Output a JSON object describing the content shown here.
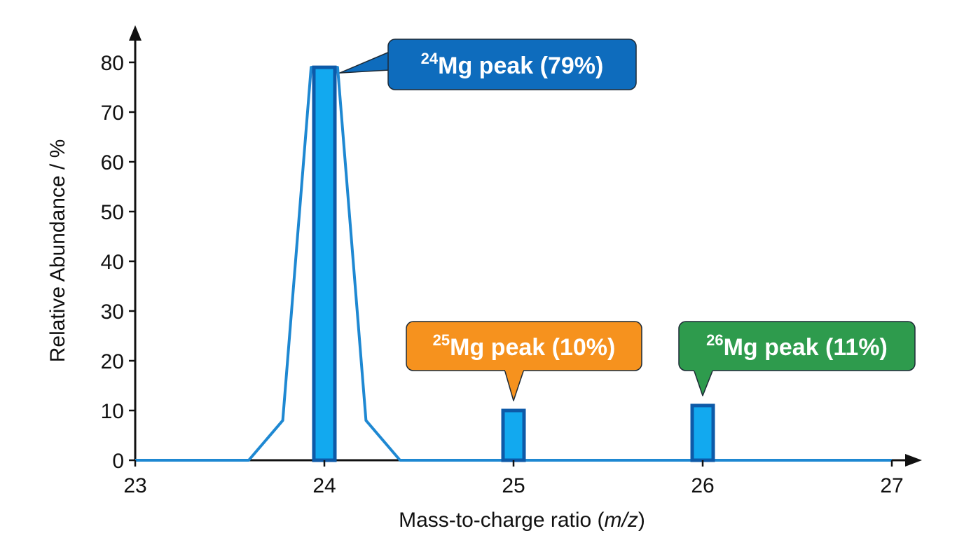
{
  "chart_data": {
    "type": "bar",
    "title": "",
    "xlabel": "Mass-to-charge ratio (m/z)",
    "xlabel_parts": {
      "prefix": "Mass-to-charge ratio (",
      "italic": "m/z",
      "suffix": ")"
    },
    "ylabel": "Relative Abundance / %",
    "xlim": [
      23,
      27
    ],
    "ylim": [
      0,
      80
    ],
    "x_ticks": [
      "23",
      "24",
      "25",
      "26",
      "27"
    ],
    "y_ticks": [
      "0",
      "10",
      "20",
      "30",
      "40",
      "50",
      "60",
      "70",
      "80"
    ],
    "grid": false,
    "series": [
      {
        "values": [
          {
            "x": 24,
            "y": 79
          },
          {
            "x": 25,
            "y": 10
          },
          {
            "x": 26,
            "y": 11
          }
        ]
      }
    ],
    "trace": [
      {
        "x": 23.0,
        "y": 0
      },
      {
        "x": 23.6,
        "y": 0
      },
      {
        "x": 23.78,
        "y": 8
      },
      {
        "x": 23.93,
        "y": 79
      },
      {
        "x": 24.07,
        "y": 79
      },
      {
        "x": 24.22,
        "y": 8
      },
      {
        "x": 24.4,
        "y": 0
      },
      {
        "x": 27.0,
        "y": 0
      }
    ],
    "annotations": [
      {
        "isotope": "24",
        "text": "Mg peak (79%)",
        "x": 24,
        "y": 79,
        "color": "#0e6cbd"
      },
      {
        "isotope": "25",
        "text": "Mg peak (10%)",
        "x": 25,
        "y": 10,
        "color": "#f6921e"
      },
      {
        "isotope": "26",
        "text": "Mg peak (11%)",
        "x": 26,
        "y": 11,
        "color": "#2e9b4d"
      }
    ],
    "colors": {
      "bar_fill": "#12a9ef",
      "bar_stroke": "#0d5aa8",
      "trace": "#1e88d2",
      "axis": "#111111"
    }
  }
}
